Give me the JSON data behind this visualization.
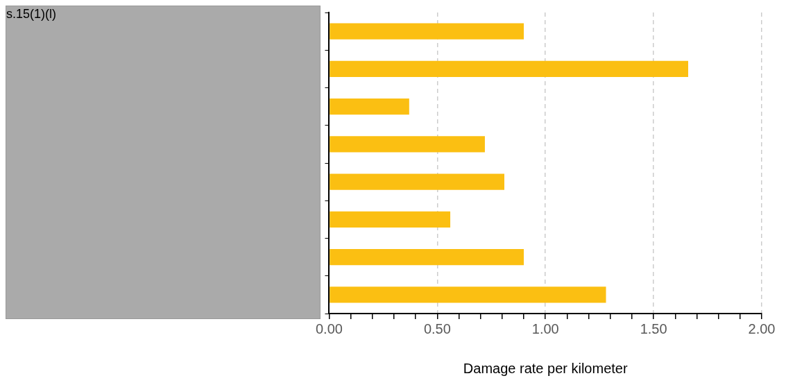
{
  "chart_data": {
    "type": "bar",
    "orientation": "horizontal",
    "xlabel": "Damage rate per kilometer",
    "categories": [
      null,
      null,
      null,
      null,
      null,
      null,
      null,
      null
    ],
    "values": [
      0.9,
      1.66,
      0.37,
      0.72,
      0.81,
      0.56,
      0.9,
      1.28
    ],
    "color": "#fbbf12",
    "xlim": [
      0,
      2
    ],
    "xticks": [
      {
        "value": 0,
        "label": "0.00"
      },
      {
        "value": 0.1,
        "label": null
      },
      {
        "value": 0.2,
        "label": null
      },
      {
        "value": 0.3,
        "label": null
      },
      {
        "value": 0.4,
        "label": null
      },
      {
        "value": 0.5,
        "label": "0.50"
      },
      {
        "value": 0.6,
        "label": null
      },
      {
        "value": 0.7,
        "label": null
      },
      {
        "value": 0.8,
        "label": null
      },
      {
        "value": 0.9,
        "label": null
      },
      {
        "value": 1,
        "label": "1.00"
      },
      {
        "value": 1.1,
        "label": null
      },
      {
        "value": 1.2,
        "label": null
      },
      {
        "value": 1.3,
        "label": null
      },
      {
        "value": 1.4,
        "label": null
      },
      {
        "value": 1.5,
        "label": "1.50"
      },
      {
        "value": 1.6,
        "label": null
      },
      {
        "value": 1.7,
        "label": null
      },
      {
        "value": 1.8,
        "label": null
      },
      {
        "value": 1.9,
        "label": null
      },
      {
        "value": 2,
        "label": "2.00"
      }
    ],
    "grid": "x",
    "legend": false,
    "annotations": [
      "s.15(1)(l)"
    ]
  }
}
